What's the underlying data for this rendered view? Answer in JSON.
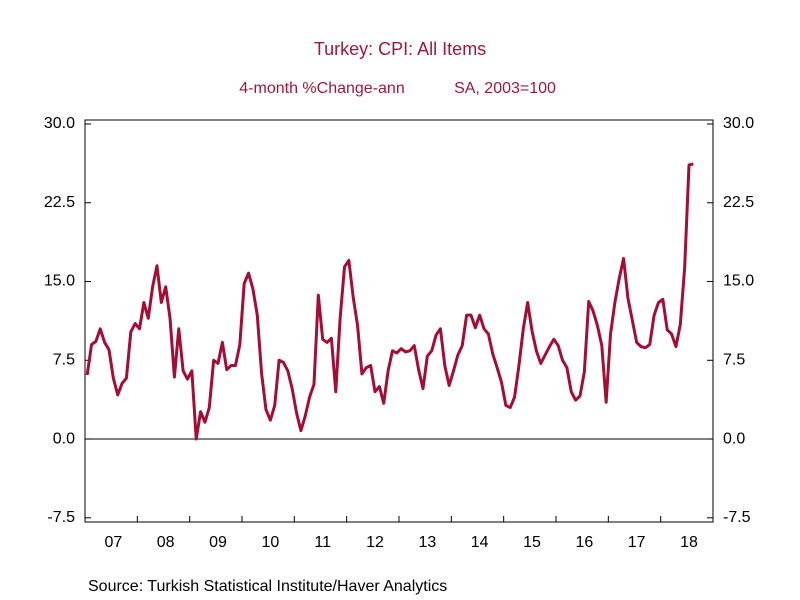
{
  "chart_data": {
    "type": "line",
    "title": "Turkey: CPI: All Items",
    "subtitle": "4-month %Change-ann",
    "subtitle2": "SA, 2003=100",
    "source": "Source:  Turkish Statistical Institute/Haver Analytics",
    "color": "#a50d35",
    "categories": [
      null,
      null,
      null,
      null,
      null,
      null,
      "07",
      null,
      null,
      null,
      null,
      null,
      null,
      null,
      null,
      null,
      null,
      null,
      "08",
      null,
      null,
      null,
      null,
      null,
      null,
      null,
      null,
      null,
      null,
      null,
      "09",
      null,
      null,
      null,
      null,
      null,
      null,
      null,
      null,
      null,
      null,
      null,
      "10",
      null,
      null,
      null,
      null,
      null,
      null,
      null,
      null,
      null,
      null,
      null,
      "11",
      null,
      null,
      null,
      null,
      null,
      null,
      null,
      null,
      null,
      null,
      null,
      "12",
      null,
      null,
      null,
      null,
      null,
      null,
      null,
      null,
      null,
      null,
      null,
      "13",
      null,
      null,
      null,
      null,
      null,
      null,
      null,
      null,
      null,
      null,
      null,
      "14",
      null,
      null,
      null,
      null,
      null,
      null,
      null,
      null,
      null,
      null,
      null,
      "15",
      null,
      null,
      null,
      null,
      null,
      null,
      null,
      null,
      null,
      null,
      null,
      "16",
      null,
      null,
      null,
      null,
      null,
      null,
      null,
      null,
      null,
      null,
      null,
      "17",
      null,
      null,
      null,
      null,
      null,
      null,
      null,
      null,
      null,
      null,
      null,
      "18",
      null
    ],
    "values": [
      6.1,
      9.0,
      9.3,
      10.5,
      9.2,
      8.5,
      5.8,
      4.2,
      5.3,
      5.8,
      10.2,
      11.0,
      10.5,
      13.0,
      11.5,
      14.5,
      16.5,
      13.0,
      14.5,
      11.5,
      5.9,
      10.5,
      6.5,
      5.7,
      6.5,
      0.0,
      2.6,
      1.6,
      3.0,
      7.5,
      7.2,
      9.2,
      6.6,
      7.0,
      7.0,
      9.0,
      14.8,
      15.8,
      14.3,
      11.8,
      6.2,
      2.8,
      1.8,
      3.2,
      7.5,
      7.3,
      6.5,
      4.8,
      2.5,
      0.8,
      2.2,
      4.0,
      5.2,
      13.7,
      9.5,
      9.2,
      9.6,
      4.5,
      11.5,
      16.4,
      17.0,
      13.5,
      10.8,
      6.2,
      6.8,
      7.0,
      4.5,
      5.0,
      3.4,
      6.5,
      8.4,
      8.2,
      8.6,
      8.3,
      8.4,
      8.9,
      6.6,
      4.8,
      7.9,
      8.4,
      9.9,
      10.5,
      7.0,
      5.1,
      6.5,
      8.0,
      8.9,
      11.8,
      11.8,
      10.6,
      11.8,
      10.5,
      10.0,
      8.1,
      6.8,
      5.4,
      3.2,
      3.0,
      4.0,
      7.0,
      10.5,
      13.0,
      10.3,
      8.4,
      7.2,
      8.0,
      8.8,
      9.5,
      8.9,
      7.5,
      6.8,
      4.5,
      3.7,
      4.1,
      6.4,
      13.1,
      12.2,
      10.8,
      8.9,
      3.5,
      10.0,
      13.0,
      15.3,
      17.2,
      13.4,
      11.3,
      9.2,
      8.8,
      8.7,
      9.0,
      11.8,
      13.0,
      13.3,
      10.4,
      10.0,
      8.8,
      10.9,
      16.3,
      26.1,
      26.2
    ],
    "ylim": [
      -7.9,
      30
    ],
    "yticks": [
      {
        "value": 30,
        "label": "30.0"
      },
      22.5,
      {
        "value": 15,
        "label": "15.0"
      },
      7.5,
      {
        "value": 0,
        "label": "0.0"
      },
      -7.5
    ],
    "y2lim": [
      -7.9,
      30
    ],
    "grid": false
  }
}
